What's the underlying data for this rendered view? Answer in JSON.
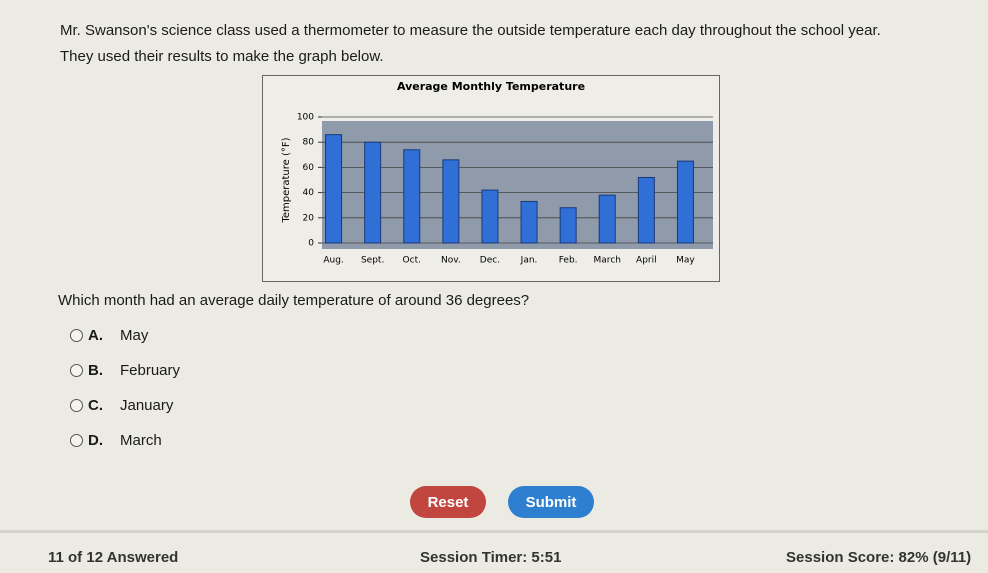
{
  "header": {
    "line1": "Mr. Swanson's science class used a thermometer to measure the outside temperature each day throughout the school year.",
    "line2": "They used their results to make the graph below."
  },
  "chart_data": {
    "type": "bar",
    "title": "Average Monthly Temperature",
    "y_label": "Temperature (°F)",
    "categories": [
      "Aug.",
      "Sept.",
      "Oct.",
      "Nov.",
      "Dec.",
      "Jan.",
      "Feb.",
      "March",
      "April",
      "May"
    ],
    "values": [
      86,
      80,
      74,
      66,
      42,
      33,
      28,
      38,
      52,
      65
    ],
    "color": "#2f6fd6",
    "ylim": [
      0,
      100
    ],
    "yticks": [
      0,
      20,
      40,
      60,
      80,
      100
    ],
    "grid": true
  },
  "question": "Which month had an average daily temperature of around 36 degrees?",
  "options": [
    {
      "letter": "A.",
      "text": "May"
    },
    {
      "letter": "B.",
      "text": "February"
    },
    {
      "letter": "C.",
      "text": "January"
    },
    {
      "letter": "D.",
      "text": "March"
    }
  ],
  "buttons": {
    "reset": "Reset",
    "submit": "Submit"
  },
  "footer": {
    "answered": "11 of 12 Answered",
    "timer": "Session Timer: 5:51",
    "score": "Session Score: 82% (9/11)"
  }
}
